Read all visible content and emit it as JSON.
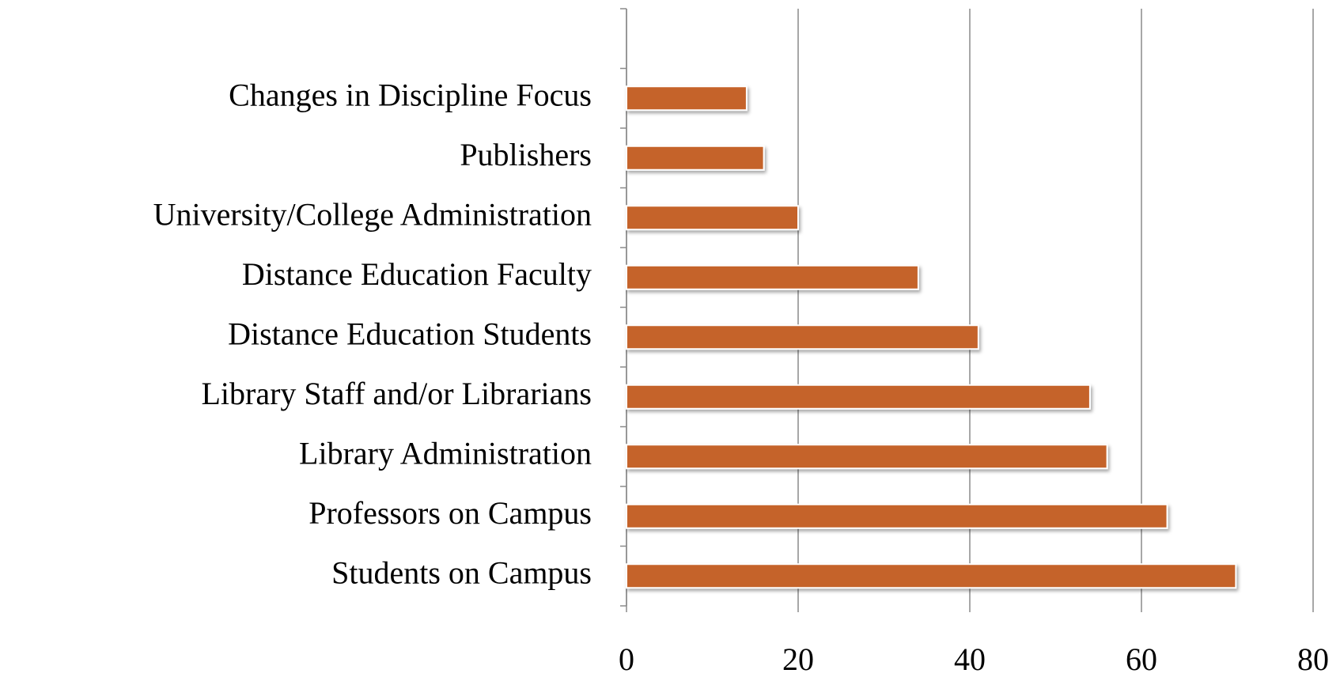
{
  "chart_data": {
    "type": "bar",
    "orientation": "horizontal",
    "categories": [
      "Changes in Discipline Focus",
      "Publishers",
      "University/College Administration",
      "Distance Education Faculty",
      "Distance Education Students",
      "Library Staff and/or Librarians",
      "Library Administration",
      "Professors on Campus",
      "Students on Campus"
    ],
    "values": [
      14,
      16,
      20,
      34,
      41,
      54,
      56,
      63,
      71
    ],
    "color": "#c5632c",
    "xlim": [
      0,
      80
    ],
    "xticks": [
      0,
      20,
      40,
      60,
      80
    ],
    "grid": true
  }
}
